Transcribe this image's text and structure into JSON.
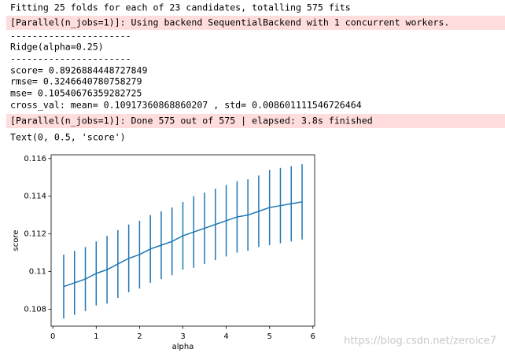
{
  "output_lines": [
    {
      "text": "Fitting 25 folds for each of 23 candidates, totalling 575 fits",
      "highlight": false
    },
    {
      "text": "[Parallel(n_jobs=1)]: Using backend SequentialBackend with 1 concurrent workers.",
      "highlight": true
    },
    {
      "text": "----------------------",
      "highlight": false
    },
    {
      "text": "Ridge(alpha=0.25)",
      "highlight": false
    },
    {
      "text": "----------------------",
      "highlight": false
    },
    {
      "text": "score= 0.8926884448727849",
      "highlight": false
    },
    {
      "text": "rmse= 0.3246640780758279",
      "highlight": false
    },
    {
      "text": "mse= 0.10540676359282725",
      "highlight": false
    },
    {
      "text": "cross_val: mean= 0.10917360868860207 , std= 0.008601111546726464",
      "highlight": false
    },
    {
      "text": "[Parallel(n_jobs=1)]: Done 575 out of 575 | elapsed:    3.8s finished",
      "highlight": true
    },
    {
      "text": "Text(0, 0.5, 'score')",
      "highlight": false
    }
  ],
  "watermark": "https://blog.csdn.net/zeroice7",
  "chart_data": {
    "type": "errorbar",
    "xlabel": "alpha",
    "ylabel": "score",
    "color": "#1f77b4",
    "x": [
      0.25,
      0.5,
      0.75,
      1,
      1.25,
      1.5,
      1.75,
      2,
      2.25,
      2.5,
      2.75,
      3,
      3.25,
      3.5,
      3.75,
      4,
      4.25,
      4.5,
      4.75,
      5,
      5.25,
      5.5,
      5.75
    ],
    "values": [
      0.1092,
      0.1094,
      0.1096,
      0.1099,
      0.1101,
      0.1104,
      0.1107,
      0.1109,
      0.1112,
      0.1114,
      0.1116,
      0.1119,
      0.1121,
      0.1123,
      0.1125,
      0.1127,
      0.1129,
      0.113,
      0.1132,
      0.1134,
      0.1135,
      0.1136,
      0.1137
    ],
    "errors": [
      0.0017,
      0.0017,
      0.0017,
      0.0017,
      0.0018,
      0.0018,
      0.0018,
      0.0018,
      0.0018,
      0.0018,
      0.0018,
      0.0018,
      0.0019,
      0.0019,
      0.0019,
      0.0019,
      0.0019,
      0.0019,
      0.0019,
      0.002,
      0.002,
      0.002,
      0.002
    ],
    "xlim": [
      -0.04,
      6.04
    ],
    "xticks": [
      0,
      1,
      2,
      3,
      4,
      5,
      6
    ],
    "ylim": [
      0.1071,
      0.1162
    ],
    "yticks": [
      0.108,
      0.11,
      0.112,
      0.114,
      0.116
    ]
  }
}
